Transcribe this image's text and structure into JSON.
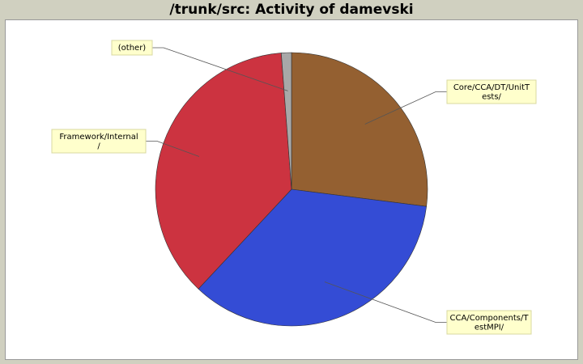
{
  "title": "/trunk/src: Activity of damevski",
  "colors": {
    "background": "#d0d0c0",
    "plot_background": "#ffffff",
    "label_background": "#ffffcc",
    "label_border": "#d8d8a0",
    "leader_line": "#555555"
  },
  "chart_data": {
    "type": "pie",
    "title": "/trunk/src: Activity of damevski",
    "start_angle_deg": 0,
    "direction": "clockwise",
    "slices": [
      {
        "label": "Core/CCA/DT/UnitTests/",
        "lines": [
          "Core/CCA/DT/UnitT",
          "ests/"
        ],
        "value": 27.0,
        "color": "#946031",
        "label_side": "right"
      },
      {
        "label": "CCA/Components/TestMPI/",
        "lines": [
          "CCA/Components/T",
          "estMPI/"
        ],
        "value": 35.0,
        "color": "#344cd5",
        "label_side": "right"
      },
      {
        "label": "Framework/Internal/",
        "lines": [
          "Framework/Internal",
          "/"
        ],
        "value": 36.8,
        "color": "#cc3340",
        "label_side": "left"
      },
      {
        "label": "(other)",
        "lines": [
          "(other)"
        ],
        "value": 1.2,
        "color": "#a8a8a8",
        "label_side": "left"
      }
    ]
  }
}
